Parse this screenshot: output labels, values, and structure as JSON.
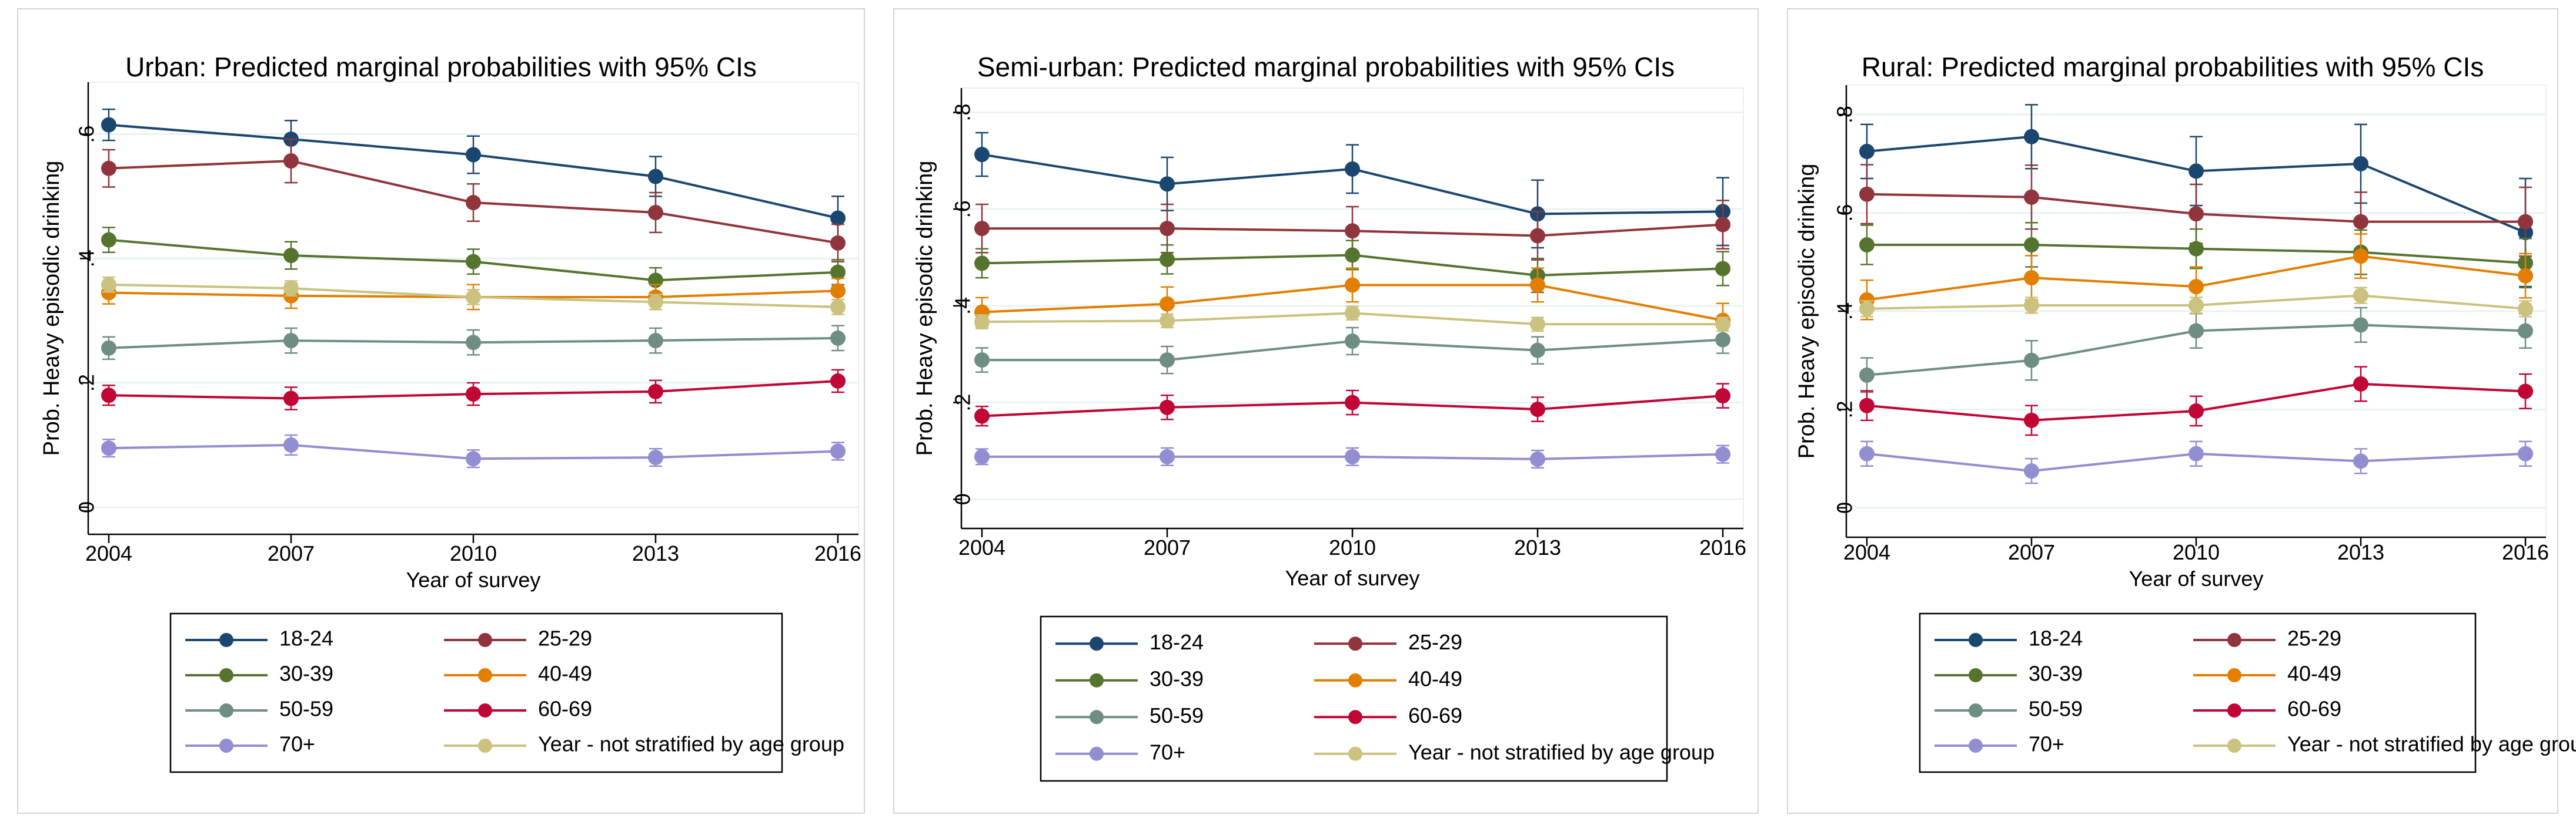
{
  "colors": {
    "18-24": "#1a476f",
    "25-29": "#90353b",
    "30-39": "#55752f",
    "40-49": "#e37e00",
    "50-59": "#6e8e84",
    "60-69": "#c10534",
    "70+": "#938dd2",
    "Year - not stratified by age group": "#cac27e"
  },
  "chart_data": [
    {
      "type": "line",
      "title": "Urban: Predicted marginal probabilities with 95% CIs",
      "xlabel": "Year of survey",
      "ylabel": "Prob. Heavy episodic drinking",
      "x": [
        2004,
        2007,
        2010,
        2013,
        2016
      ],
      "x_tick_labels": [
        "2004",
        "2007",
        "2010",
        "2013",
        "2016"
      ],
      "ylim": [
        -0.02,
        0.66
      ],
      "y_ticks": [
        0,
        0.2,
        0.4,
        0.6
      ],
      "y_tick_labels": [
        "0",
        ".2",
        ".4",
        ".6"
      ],
      "legend_position": "bottom",
      "series": [
        {
          "name": "18-24",
          "values": [
            0.615,
            0.592,
            0.567,
            0.532,
            0.465
          ],
          "ci_half": [
            0.025,
            0.03,
            0.03,
            0.032,
            0.035
          ]
        },
        {
          "name": "25-29",
          "values": [
            0.545,
            0.557,
            0.49,
            0.474,
            0.425
          ],
          "ci_half": [
            0.03,
            0.035,
            0.03,
            0.032,
            0.03
          ]
        },
        {
          "name": "30-39",
          "values": [
            0.43,
            0.405,
            0.395,
            0.365,
            0.378
          ],
          "ci_half": [
            0.02,
            0.022,
            0.02,
            0.02,
            0.02
          ]
        },
        {
          "name": "40-49",
          "values": [
            0.345,
            0.34,
            0.338,
            0.338,
            0.348
          ],
          "ci_half": [
            0.018,
            0.02,
            0.02,
            0.02,
            0.02
          ]
        },
        {
          "name": "50-59",
          "values": [
            0.256,
            0.268,
            0.265,
            0.268,
            0.272
          ],
          "ci_half": [
            0.018,
            0.02,
            0.02,
            0.02,
            0.02
          ]
        },
        {
          "name": "60-69",
          "values": [
            0.18,
            0.175,
            0.182,
            0.186,
            0.203
          ],
          "ci_half": [
            0.016,
            0.018,
            0.018,
            0.018,
            0.018
          ]
        },
        {
          "name": "70+",
          "values": [
            0.095,
            0.1,
            0.078,
            0.08,
            0.09
          ],
          "ci_half": [
            0.014,
            0.016,
            0.014,
            0.014,
            0.014
          ]
        },
        {
          "name": "Year - not stratified by age group",
          "values": [
            0.358,
            0.352,
            0.338,
            0.33,
            0.322
          ],
          "ci_half": [
            0.012,
            0.012,
            0.012,
            0.012,
            0.012
          ]
        }
      ]
    },
    {
      "type": "line",
      "title": "Semi-urban: Predicted marginal probabilities with 95% CIs",
      "xlabel": "Year of survey",
      "ylabel": "Prob. Heavy episodic drinking",
      "x": [
        2004,
        2007,
        2010,
        2013,
        2016
      ],
      "x_tick_labels": [
        "2004",
        "2007",
        "2010",
        "2013",
        "2016"
      ],
      "ylim": [
        -0.03,
        0.82
      ],
      "y_ticks": [
        0,
        0.2,
        0.4,
        0.6,
        0.8
      ],
      "y_tick_labels": [
        "0",
        ".2",
        ".4",
        ".6",
        ".8"
      ],
      "legend_position": "bottom",
      "series": [
        {
          "name": "18-24",
          "values": [
            0.713,
            0.652,
            0.683,
            0.59,
            0.595
          ],
          "ci_half": [
            0.045,
            0.055,
            0.05,
            0.07,
            0.07
          ]
        },
        {
          "name": "25-29",
          "values": [
            0.56,
            0.56,
            0.555,
            0.545,
            0.568
          ],
          "ci_half": [
            0.05,
            0.05,
            0.05,
            0.05,
            0.05
          ]
        },
        {
          "name": "30-39",
          "values": [
            0.488,
            0.496,
            0.505,
            0.463,
            0.477
          ],
          "ci_half": [
            0.03,
            0.03,
            0.03,
            0.035,
            0.035
          ]
        },
        {
          "name": "40-49",
          "values": [
            0.387,
            0.404,
            0.443,
            0.443,
            0.37
          ],
          "ci_half": [
            0.03,
            0.035,
            0.035,
            0.035,
            0.035
          ]
        },
        {
          "name": "50-59",
          "values": [
            0.288,
            0.288,
            0.327,
            0.308,
            0.33
          ],
          "ci_half": [
            0.025,
            0.028,
            0.028,
            0.028,
            0.028
          ]
        },
        {
          "name": "60-69",
          "values": [
            0.172,
            0.19,
            0.2,
            0.186,
            0.214
          ],
          "ci_half": [
            0.02,
            0.025,
            0.025,
            0.025,
            0.025
          ]
        },
        {
          "name": "70+",
          "values": [
            0.088,
            0.088,
            0.088,
            0.083,
            0.093
          ],
          "ci_half": [
            0.016,
            0.018,
            0.018,
            0.018,
            0.018
          ]
        },
        {
          "name": "Year - not stratified by age group",
          "values": [
            0.367,
            0.369,
            0.385,
            0.362,
            0.362
          ],
          "ci_half": [
            0.014,
            0.014,
            0.014,
            0.014,
            0.014
          ]
        }
      ]
    },
    {
      "type": "line",
      "title": "Rural: Predicted marginal probabilities with 95% CIs",
      "xlabel": "Year of survey",
      "ylabel": "Prob. Heavy episodic drinking",
      "x": [
        2004,
        2007,
        2010,
        2013,
        2016
      ],
      "x_tick_labels": [
        "2004",
        "2007",
        "2010",
        "2013",
        "2016"
      ],
      "ylim": [
        -0.03,
        0.83
      ],
      "y_ticks": [
        0,
        0.2,
        0.4,
        0.6,
        0.8
      ],
      "y_tick_labels": [
        "0",
        ".2",
        ".4",
        ".6",
        ".8"
      ],
      "legend_position": "bottom",
      "series": [
        {
          "name": "18-24",
          "values": [
            0.725,
            0.755,
            0.685,
            0.7,
            0.56
          ],
          "ci_half": [
            0.055,
            0.065,
            0.07,
            0.08,
            0.11
          ]
        },
        {
          "name": "25-29",
          "values": [
            0.638,
            0.632,
            0.598,
            0.582,
            0.582
          ],
          "ci_half": [
            0.06,
            0.065,
            0.06,
            0.06,
            0.07
          ]
        },
        {
          "name": "30-39",
          "values": [
            0.535,
            0.535,
            0.527,
            0.52,
            0.498
          ],
          "ci_half": [
            0.04,
            0.045,
            0.04,
            0.045,
            0.05
          ]
        },
        {
          "name": "40-49",
          "values": [
            0.423,
            0.468,
            0.45,
            0.512,
            0.472
          ],
          "ci_half": [
            0.04,
            0.045,
            0.04,
            0.045,
            0.045
          ]
        },
        {
          "name": "50-59",
          "values": [
            0.27,
            0.3,
            0.36,
            0.372,
            0.36
          ],
          "ci_half": [
            0.035,
            0.04,
            0.035,
            0.035,
            0.035
          ]
        },
        {
          "name": "60-69",
          "values": [
            0.208,
            0.178,
            0.197,
            0.252,
            0.237
          ],
          "ci_half": [
            0.03,
            0.03,
            0.03,
            0.035,
            0.035
          ]
        },
        {
          "name": "70+",
          "values": [
            0.11,
            0.075,
            0.11,
            0.095,
            0.11
          ],
          "ci_half": [
            0.025,
            0.025,
            0.025,
            0.025,
            0.025
          ]
        },
        {
          "name": "Year - not stratified by age group",
          "values": [
            0.405,
            0.412,
            0.412,
            0.432,
            0.405
          ],
          "ci_half": [
            0.016,
            0.016,
            0.016,
            0.016,
            0.016
          ]
        }
      ]
    }
  ]
}
